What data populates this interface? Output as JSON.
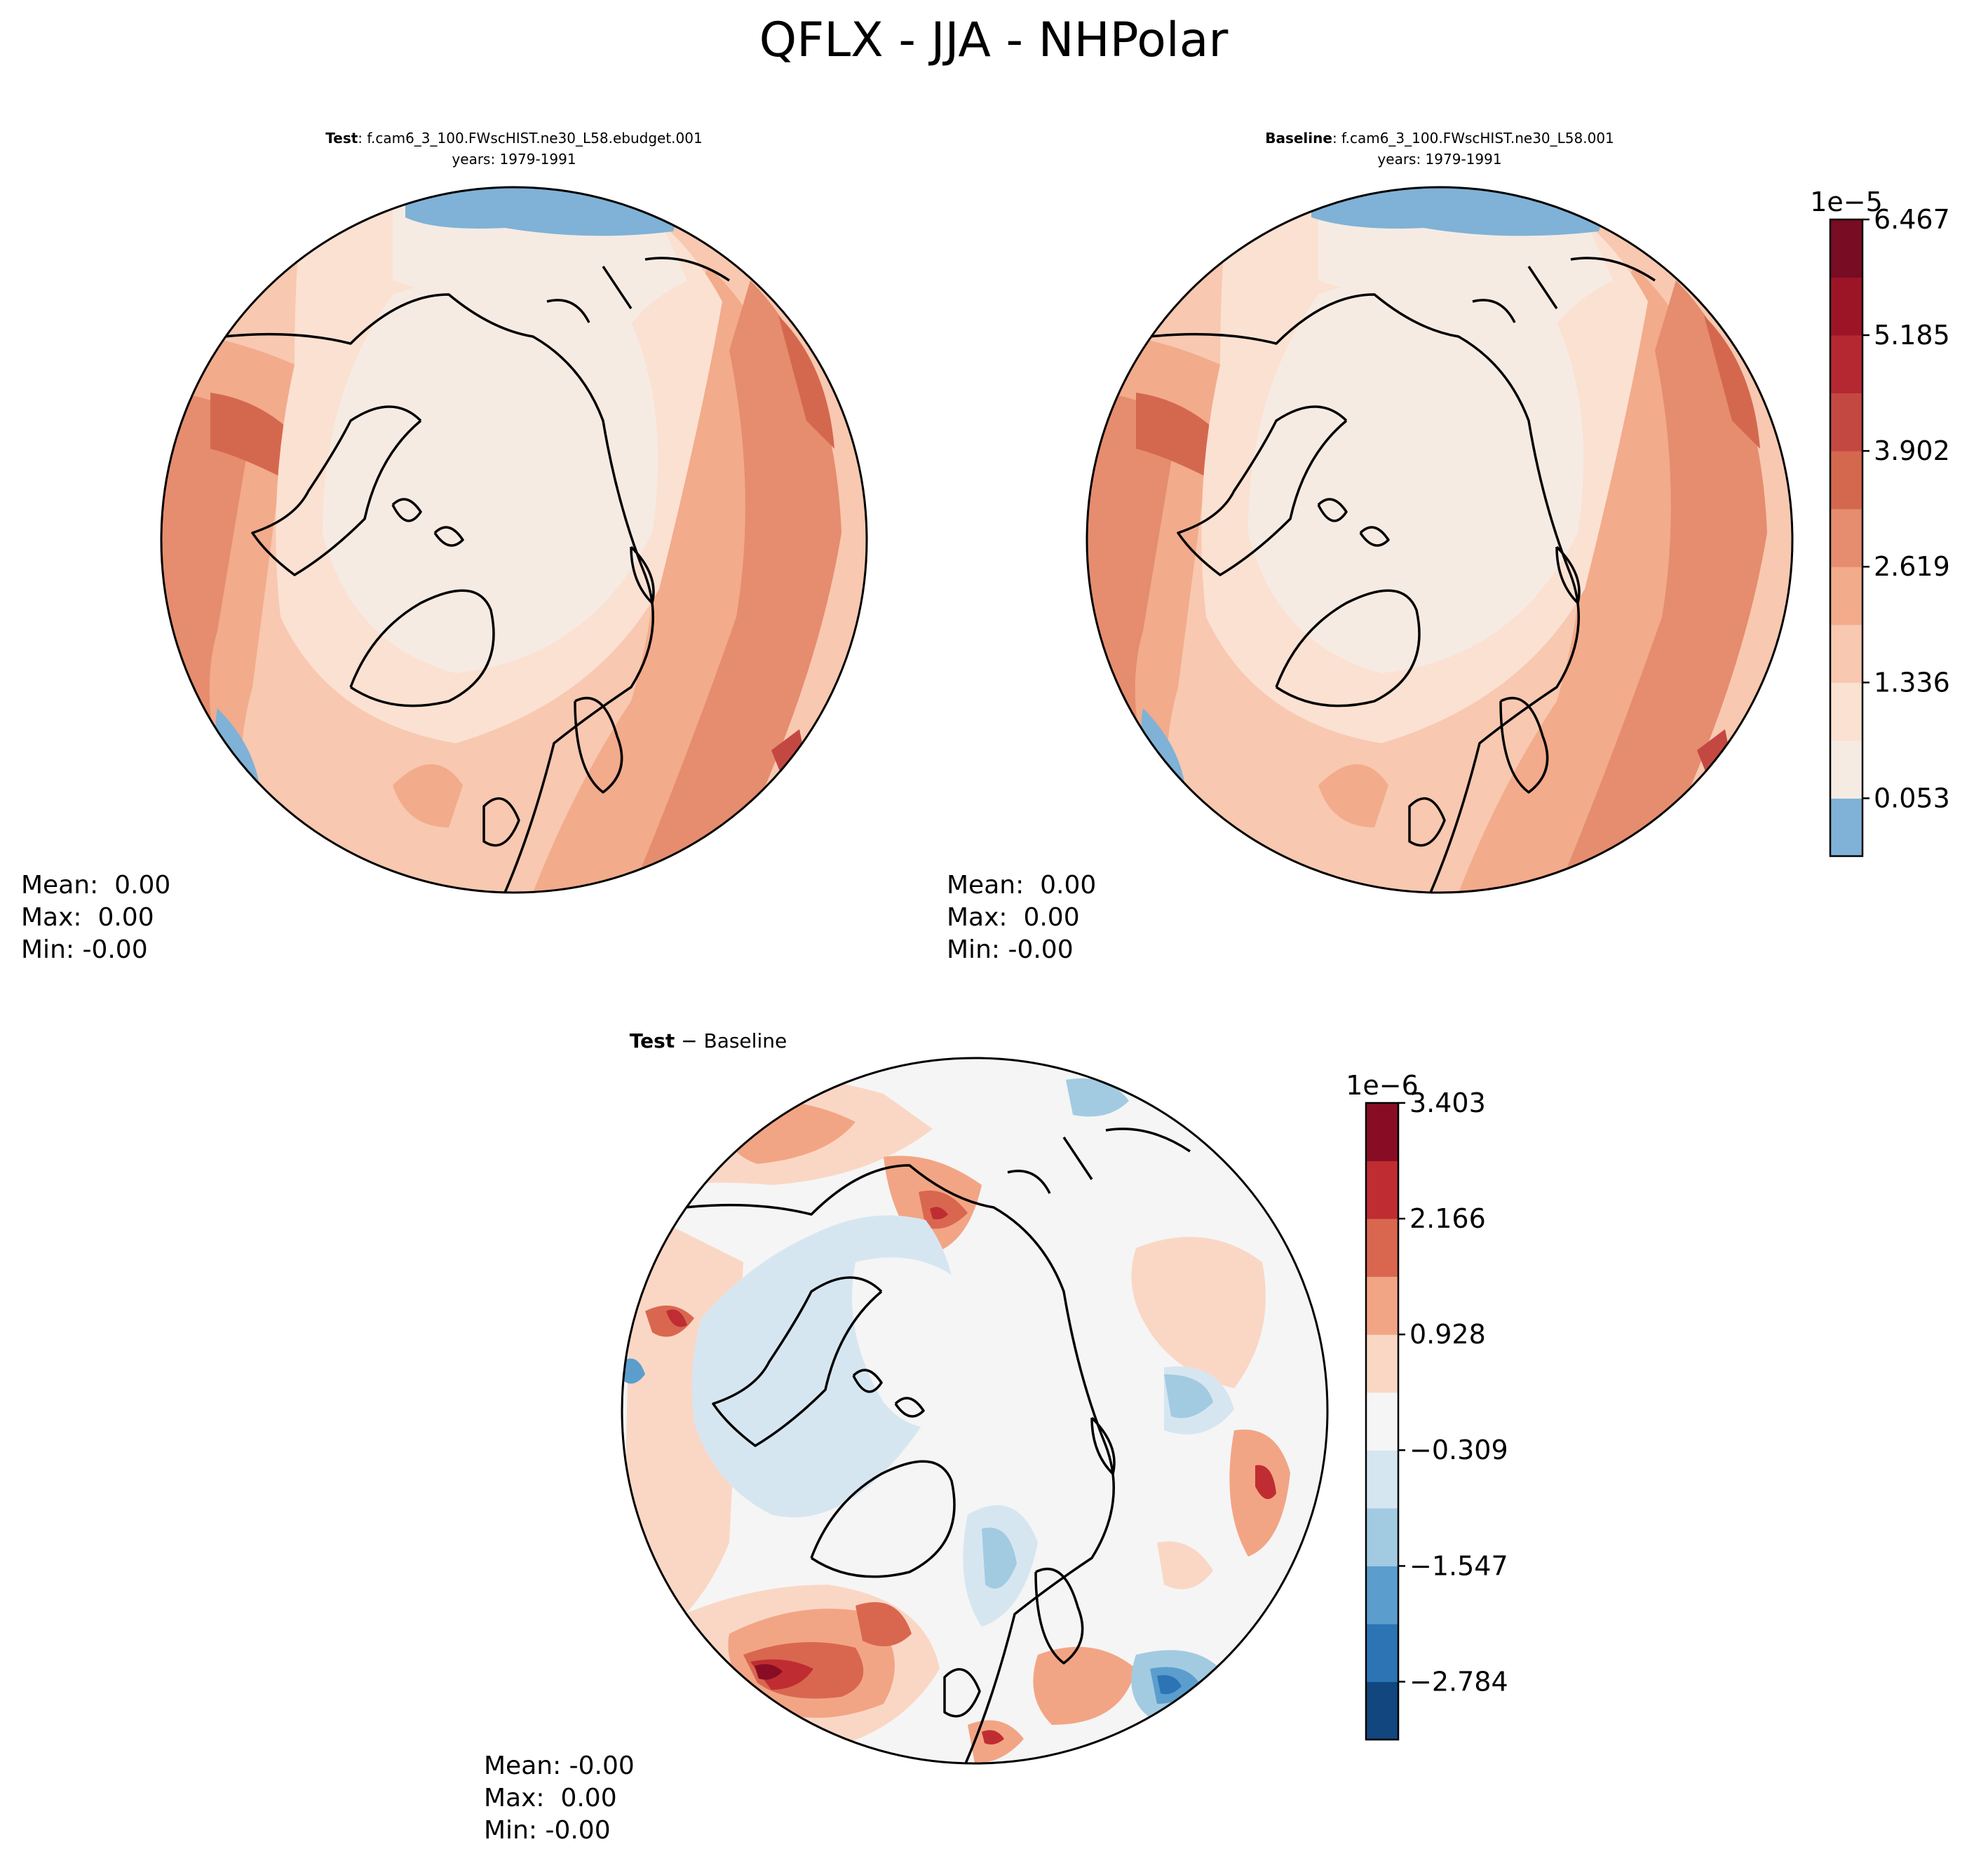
{
  "figure": {
    "title": "QFLX - JJA - NHPolar"
  },
  "chart_data": [
    {
      "type": "heatmap",
      "projection": "north-polar-stereographic",
      "title_bold": "Test",
      "title_rest": ": f.cam6_3_100.FWscHIST.ne30_L58.ebudget.001",
      "subtitle": "years: 1979-1991",
      "stats": [
        "Mean:  0.00",
        "Max:  0.00",
        "Min: -0.00"
      ],
      "colorbar_ref": 0
    },
    {
      "type": "heatmap",
      "projection": "north-polar-stereographic",
      "title_bold": "Baseline",
      "title_rest": ": f.cam6_3_100.FWscHIST.ne30_L58.001",
      "subtitle": "years: 1979-1991",
      "stats": [
        "Mean:  0.00",
        "Max:  0.00",
        "Min: -0.00"
      ],
      "colorbar_ref": 0
    },
    {
      "type": "heatmap",
      "projection": "north-polar-stereographic",
      "title_bold": "Test",
      "title_rest": " − Baseline",
      "subtitle": "",
      "stats": [
        "Mean: -0.00",
        "Max:  0.00",
        "Min: -0.00"
      ],
      "colorbar_ref": 1
    }
  ],
  "colorbars": [
    {
      "multiplier": "1e−5",
      "ticks": [
        "0.053",
        "1.336",
        "2.619",
        "3.902",
        "5.185",
        "6.467"
      ],
      "tick_values": [
        0.053,
        1.336,
        2.619,
        3.902,
        5.185,
        6.467
      ],
      "range": [
        -0.588,
        6.467
      ],
      "levels": [
        -0.588,
        0.053,
        0.695,
        1.336,
        1.978,
        2.619,
        3.261,
        3.902,
        4.544,
        5.185,
        5.826,
        6.467
      ],
      "colors": [
        "#7fb2d6",
        "#f6ebe3",
        "#fbe1d2",
        "#f8c8b0",
        "#f2ab8b",
        "#e58d6e",
        "#d4684f",
        "#c44842",
        "#b52832",
        "#9c1527",
        "#780c22"
      ]
    },
    {
      "multiplier": "1e−6",
      "ticks": [
        "−2.784",
        "−1.547",
        "−0.309",
        "0.928",
        "2.166",
        "3.403"
      ],
      "tick_values": [
        -2.784,
        -1.547,
        -0.309,
        0.928,
        2.166,
        3.403
      ],
      "range": [
        -3.403,
        3.403
      ],
      "levels": [
        -3.403,
        -2.784,
        -2.166,
        -1.547,
        -0.928,
        -0.309,
        0.309,
        0.928,
        1.547,
        2.166,
        2.784,
        3.403
      ],
      "colors": [
        "#11467e",
        "#2c74b4",
        "#5b9ecd",
        "#a2cbe2",
        "#d6e6f1",
        "#f5f5f5",
        "#fad7c5",
        "#f2a585",
        "#d9674f",
        "#bf2d32",
        "#880d24"
      ]
    }
  ]
}
